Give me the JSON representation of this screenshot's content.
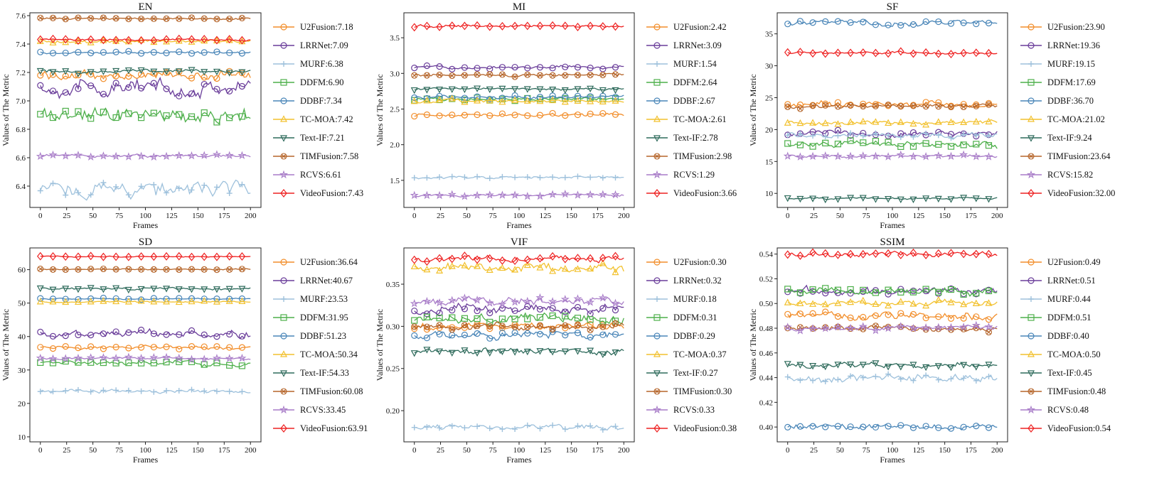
{
  "figure": {
    "x_label": "Frames",
    "y_label": "Values of The Metric"
  },
  "chart_data": [
    {
      "type": "line",
      "title": "EN",
      "xlabel": "Frames",
      "ylabel": "Values of The Metric",
      "xlim": [
        -10,
        210
      ],
      "ylim": [
        6.25,
        7.62
      ],
      "xticks": [
        0,
        25,
        50,
        75,
        100,
        125,
        150,
        175,
        200
      ],
      "yticks": [
        6.4,
        6.6,
        6.8,
        7.0,
        7.2,
        7.4,
        7.6
      ],
      "ytick_labels": [
        "6.4",
        "6.6",
        "6.8",
        "7.0",
        "7.2",
        "7.4",
        "7.6"
      ],
      "legend_loc": "right",
      "series": [
        {
          "name": "U2Fusion",
          "label": "U2Fusion:7.18",
          "mean": 7.18,
          "color": "#f28e2b",
          "marker": "circle",
          "noise": 0.03
        },
        {
          "name": "LRRNet",
          "label": "LRRNet:7.09",
          "mean": 7.09,
          "color": "#6a3d9a",
          "marker": "circle",
          "noise": 0.05
        },
        {
          "name": "MURF",
          "label": "MURF:6.38",
          "mean": 6.38,
          "color": "#9ec1dc",
          "marker": "plus",
          "noise": 0.05
        },
        {
          "name": "DDFM",
          "label": "DDFM:6.90",
          "mean": 6.9,
          "color": "#4daf4a",
          "marker": "square",
          "noise": 0.05
        },
        {
          "name": "DDBF",
          "label": "DDBF:7.34",
          "mean": 7.34,
          "color": "#4a86b8",
          "marker": "circle",
          "noise": 0.008
        },
        {
          "name": "TC-MOA",
          "label": "TC-MOA:7.42",
          "mean": 7.42,
          "color": "#f2c12e",
          "marker": "triangle-up",
          "noise": 0.01
        },
        {
          "name": "Text-IF",
          "label": "Text-IF:7.21",
          "mean": 7.21,
          "color": "#2f6b5c",
          "marker": "triangle-down",
          "noise": 0.01
        },
        {
          "name": "TIMFusion",
          "label": "TIMFusion:7.58",
          "mean": 7.58,
          "color": "#b5652a",
          "marker": "x-circle",
          "noise": 0.006
        },
        {
          "name": "RCVS",
          "label": "RCVS:6.61",
          "mean": 6.61,
          "color": "#a87cc8",
          "marker": "star",
          "noise": 0.01
        },
        {
          "name": "VideoFusion",
          "label": "VideoFusion:7.43",
          "mean": 7.43,
          "color": "#ee2222",
          "marker": "diamond",
          "noise": 0.006
        }
      ]
    },
    {
      "type": "line",
      "title": "MI",
      "xlabel": "Frames",
      "ylabel": "Values of The Metric",
      "xlim": [
        -10,
        210
      ],
      "ylim": [
        1.12,
        3.85
      ],
      "xticks": [
        0,
        25,
        50,
        75,
        100,
        125,
        150,
        175,
        200
      ],
      "yticks": [
        1.5,
        2.0,
        2.5,
        3.0,
        3.5
      ],
      "ytick_labels": [
        "1.5",
        "2.0",
        "2.5",
        "3.0",
        "3.5"
      ],
      "legend_loc": "right",
      "series": [
        {
          "name": "U2Fusion",
          "label": "U2Fusion:2.42",
          "mean": 2.42,
          "color": "#f28e2b",
          "marker": "circle",
          "noise": 0.02
        },
        {
          "name": "LRRNet",
          "label": "LRRNet:3.09",
          "mean": 3.09,
          "color": "#6a3d9a",
          "marker": "circle",
          "noise": 0.02
        },
        {
          "name": "MURF",
          "label": "MURF:1.54",
          "mean": 1.54,
          "color": "#9ec1dc",
          "marker": "plus",
          "noise": 0.015
        },
        {
          "name": "DDFM",
          "label": "DDFM:2.64",
          "mean": 2.64,
          "color": "#4daf4a",
          "marker": "square",
          "noise": 0.02
        },
        {
          "name": "DDBF",
          "label": "DDBF:2.67",
          "mean": 2.67,
          "color": "#4a86b8",
          "marker": "circle",
          "noise": 0.02
        },
        {
          "name": "TC-MOA",
          "label": "TC-MOA:2.61",
          "mean": 2.61,
          "color": "#f2c12e",
          "marker": "triangle-up",
          "noise": 0.02
        },
        {
          "name": "Text-IF",
          "label": "Text-IF:2.78",
          "mean": 2.78,
          "color": "#2f6b5c",
          "marker": "triangle-down",
          "noise": 0.015
        },
        {
          "name": "TIMFusion",
          "label": "TIMFusion:2.98",
          "mean": 2.98,
          "color": "#b5652a",
          "marker": "x-circle",
          "noise": 0.02
        },
        {
          "name": "RCVS",
          "label": "RCVS:1.29",
          "mean": 1.29,
          "color": "#a87cc8",
          "marker": "star",
          "noise": 0.015
        },
        {
          "name": "VideoFusion",
          "label": "VideoFusion:3.66",
          "mean": 3.66,
          "color": "#ee2222",
          "marker": "diamond",
          "noise": 0.02
        }
      ]
    },
    {
      "type": "line",
      "title": "SF",
      "xlabel": "Frames",
      "ylabel": "Values of The Metric",
      "xlim": [
        -10,
        210
      ],
      "ylim": [
        7.8,
        38.3
      ],
      "xticks": [
        0,
        25,
        50,
        75,
        100,
        125,
        150,
        175,
        200
      ],
      "yticks": [
        10,
        15,
        20,
        25,
        30,
        35
      ],
      "ytick_labels": [
        "10",
        "15",
        "20",
        "25",
        "30",
        "35"
      ],
      "legend_loc": "right",
      "series": [
        {
          "name": "U2Fusion",
          "label": "U2Fusion:23.90",
          "mean": 23.9,
          "color": "#f28e2b",
          "marker": "circle",
          "noise": 0.4
        },
        {
          "name": "LRRNet",
          "label": "LRRNet:19.36",
          "mean": 19.36,
          "color": "#6a3d9a",
          "marker": "circle",
          "noise": 0.4
        },
        {
          "name": "MURF",
          "label": "MURF:19.15",
          "mean": 19.15,
          "color": "#9ec1dc",
          "marker": "plus",
          "noise": 0.4
        },
        {
          "name": "DDFM",
          "label": "DDFM:17.69",
          "mean": 17.69,
          "color": "#4daf4a",
          "marker": "square",
          "noise": 0.5
        },
        {
          "name": "DDBF",
          "label": "DDBF:36.70",
          "mean": 36.7,
          "color": "#4a86b8",
          "marker": "circle",
          "noise": 0.4
        },
        {
          "name": "TC-MOA",
          "label": "TC-MOA:21.02",
          "mean": 21.02,
          "color": "#f2c12e",
          "marker": "triangle-up",
          "noise": 0.3
        },
        {
          "name": "Text-IF",
          "label": "Text-IF:9.24",
          "mean": 9.24,
          "color": "#2f6b5c",
          "marker": "triangle-down",
          "noise": 0.15
        },
        {
          "name": "TIMFusion",
          "label": "TIMFusion:23.64",
          "mean": 23.64,
          "color": "#b5652a",
          "marker": "x-circle",
          "noise": 0.3
        },
        {
          "name": "RCVS",
          "label": "RCVS:15.82",
          "mean": 15.82,
          "color": "#a87cc8",
          "marker": "star",
          "noise": 0.2
        },
        {
          "name": "VideoFusion",
          "label": "VideoFusion:32.00",
          "mean": 32.0,
          "color": "#ee2222",
          "marker": "diamond",
          "noise": 0.2
        }
      ]
    },
    {
      "type": "line",
      "title": "SD",
      "xlabel": "Frames",
      "ylabel": "Values of The Metric",
      "xlim": [
        -10,
        210
      ],
      "ylim": [
        8.5,
        66.5
      ],
      "xticks": [
        0,
        25,
        50,
        75,
        100,
        125,
        150,
        175,
        200
      ],
      "yticks": [
        10,
        20,
        30,
        40,
        50,
        60
      ],
      "ytick_labels": [
        "10",
        "20",
        "30",
        "40",
        "50",
        "60"
      ],
      "legend_loc": "right",
      "series": [
        {
          "name": "U2Fusion",
          "label": "U2Fusion:36.64",
          "mean": 36.64,
          "color": "#f28e2b",
          "marker": "circle",
          "noise": 0.5
        },
        {
          "name": "LRRNet",
          "label": "LRRNet:40.67",
          "mean": 40.67,
          "color": "#6a3d9a",
          "marker": "circle",
          "noise": 1.0
        },
        {
          "name": "MURF",
          "label": "MURF:23.53",
          "mean": 23.53,
          "color": "#9ec1dc",
          "marker": "plus",
          "noise": 0.5
        },
        {
          "name": "DDFM",
          "label": "DDFM:31.95",
          "mean": 31.95,
          "color": "#4daf4a",
          "marker": "square",
          "noise": 0.6
        },
        {
          "name": "DDBF",
          "label": "DDBF:51.23",
          "mean": 51.23,
          "color": "#4a86b8",
          "marker": "circle",
          "noise": 0.2
        },
        {
          "name": "TC-MOA",
          "label": "TC-MOA:50.34",
          "mean": 50.34,
          "color": "#f2c12e",
          "marker": "triangle-up",
          "noise": 0.2
        },
        {
          "name": "Text-IF",
          "label": "Text-IF:54.33",
          "mean": 54.33,
          "color": "#2f6b5c",
          "marker": "triangle-down",
          "noise": 0.3
        },
        {
          "name": "TIMFusion",
          "label": "TIMFusion:60.08",
          "mean": 60.08,
          "color": "#b5652a",
          "marker": "x-circle",
          "noise": 0.15
        },
        {
          "name": "RCVS",
          "label": "RCVS:33.45",
          "mean": 33.45,
          "color": "#a87cc8",
          "marker": "star",
          "noise": 0.3
        },
        {
          "name": "VideoFusion",
          "label": "VideoFusion:63.91",
          "mean": 63.91,
          "color": "#ee2222",
          "marker": "diamond",
          "noise": 0.15
        }
      ]
    },
    {
      "type": "line",
      "title": "VIF",
      "xlabel": "Frames",
      "ylabel": "Values of The Metric",
      "xlim": [
        -10,
        210
      ],
      "ylim": [
        0.163,
        0.393
      ],
      "xticks": [
        0,
        25,
        50,
        75,
        100,
        125,
        150,
        175,
        200
      ],
      "yticks": [
        0.2,
        0.25,
        0.3,
        0.35
      ],
      "ytick_labels": [
        "0.20",
        "0.25",
        "0.30",
        "0.35"
      ],
      "legend_loc": "right",
      "series": [
        {
          "name": "U2Fusion",
          "label": "U2Fusion:0.30",
          "mean": 0.3,
          "color": "#f28e2b",
          "marker": "circle",
          "noise": 0.004
        },
        {
          "name": "LRRNet",
          "label": "LRRNet:0.32",
          "mean": 0.32,
          "color": "#6a3d9a",
          "marker": "circle",
          "noise": 0.005
        },
        {
          "name": "MURF",
          "label": "MURF:0.18",
          "mean": 0.18,
          "color": "#9ec1dc",
          "marker": "plus",
          "noise": 0.003
        },
        {
          "name": "DDFM",
          "label": "DDFM:0.31",
          "mean": 0.31,
          "color": "#4daf4a",
          "marker": "square",
          "noise": 0.005
        },
        {
          "name": "DDBF",
          "label": "DDBF:0.29",
          "mean": 0.29,
          "color": "#4a86b8",
          "marker": "circle",
          "noise": 0.004
        },
        {
          "name": "TC-MOA",
          "label": "TC-MOA:0.37",
          "mean": 0.37,
          "color": "#f2c12e",
          "marker": "triangle-up",
          "noise": 0.005
        },
        {
          "name": "Text-IF",
          "label": "Text-IF:0.27",
          "mean": 0.27,
          "color": "#2f6b5c",
          "marker": "triangle-down",
          "noise": 0.003
        },
        {
          "name": "TIMFusion",
          "label": "TIMFusion:0.30",
          "mean": 0.3,
          "color": "#b5652a",
          "marker": "x-circle",
          "noise": 0.004
        },
        {
          "name": "RCVS",
          "label": "RCVS:0.33",
          "mean": 0.33,
          "color": "#a87cc8",
          "marker": "star",
          "noise": 0.004
        },
        {
          "name": "VideoFusion",
          "label": "VideoFusion:0.38",
          "mean": 0.38,
          "color": "#ee2222",
          "marker": "diamond",
          "noise": 0.003
        }
      ]
    },
    {
      "type": "line",
      "title": "SSIM",
      "xlabel": "Frames",
      "ylabel": "Values of The Metric",
      "xlim": [
        -10,
        210
      ],
      "ylim": [
        0.388,
        0.545
      ],
      "xticks": [
        0,
        25,
        50,
        75,
        100,
        125,
        150,
        175,
        200
      ],
      "yticks": [
        0.4,
        0.42,
        0.44,
        0.46,
        0.48,
        0.5,
        0.52,
        0.54
      ],
      "ytick_labels": [
        "0.40",
        "0.42",
        "0.44",
        "0.46",
        "0.48",
        "0.50",
        "0.52",
        "0.54"
      ],
      "legend_loc": "right",
      "series": [
        {
          "name": "U2Fusion",
          "label": "U2Fusion:0.49",
          "mean": 0.49,
          "color": "#f28e2b",
          "marker": "circle",
          "noise": 0.003
        },
        {
          "name": "LRRNet",
          "label": "LRRNet:0.51",
          "mean": 0.51,
          "color": "#6a3d9a",
          "marker": "circle",
          "noise": 0.003
        },
        {
          "name": "MURF",
          "label": "MURF:0.44",
          "mean": 0.44,
          "color": "#9ec1dc",
          "marker": "plus",
          "noise": 0.003
        },
        {
          "name": "DDFM",
          "label": "DDFM:0.51",
          "mean": 0.51,
          "color": "#4daf4a",
          "marker": "square",
          "noise": 0.003
        },
        {
          "name": "DDBF",
          "label": "DDBF:0.40",
          "mean": 0.4,
          "color": "#4a86b8",
          "marker": "circle",
          "noise": 0.002
        },
        {
          "name": "TC-MOA",
          "label": "TC-MOA:0.50",
          "mean": 0.5,
          "color": "#f2c12e",
          "marker": "triangle-up",
          "noise": 0.002
        },
        {
          "name": "Text-IF",
          "label": "Text-IF:0.45",
          "mean": 0.45,
          "color": "#2f6b5c",
          "marker": "triangle-down",
          "noise": 0.002
        },
        {
          "name": "TIMFusion",
          "label": "TIMFusion:0.48",
          "mean": 0.48,
          "color": "#b5652a",
          "marker": "x-circle",
          "noise": 0.002
        },
        {
          "name": "RCVS",
          "label": "RCVS:0.48",
          "mean": 0.48,
          "color": "#a87cc8",
          "marker": "star",
          "noise": 0.002
        },
        {
          "name": "VideoFusion",
          "label": "VideoFusion:0.54",
          "mean": 0.54,
          "color": "#ee2222",
          "marker": "diamond",
          "noise": 0.002
        }
      ]
    }
  ]
}
